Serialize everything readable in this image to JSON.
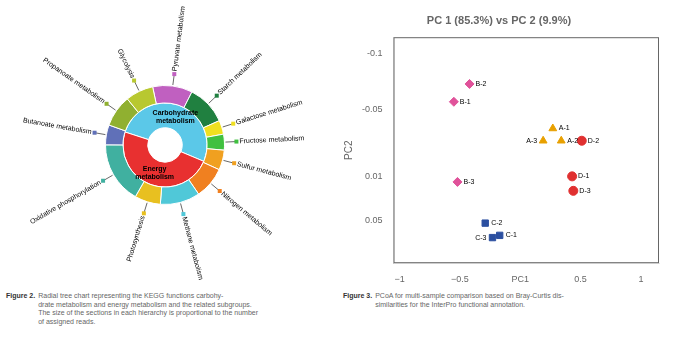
{
  "chart_data": [
    {
      "type": "sunburst",
      "series": [
        {
          "categories": [
            "Carbohydrate\nmetabolism",
            "Energy\nmetabolism"
          ],
          "values": [
            190,
            180
          ],
          "colors": [
            "#5bc8e8",
            "#e83030"
          ]
        },
        {
          "categories": [
            "Pyruvate metabolism",
            "Starch metabolism",
            "Galactose metabolism",
            "Fructose metabolism",
            "Sulfur metabolism",
            "Nitrogen metabolism",
            "Methane metabolism",
            "Photosynthesis",
            "Oxidative phosphorylation",
            "Butanoate metabolism",
            "Propanoate metabolism",
            "Glycolysis"
          ],
          "values": [
            40,
            40,
            14,
            16,
            20,
            32,
            40,
            26,
            62,
            20,
            32,
            28
          ],
          "colors": [
            "#c060c0",
            "#208040",
            "#f0e020",
            "#40c040",
            "#f0a020",
            "#f08020",
            "#50c8d8",
            "#e8c020",
            "#40b0a0",
            "#6070b8",
            "#90b030",
            "#b8c830"
          ]
        }
      ],
      "annotations": [
        "Figure 2.",
        "Radial tree chart representing the KEGG functions carbohy-\ndrate metabolism and energy metabolism and the related subgroups.\nThe size of the sections in each hierarchy is proportional to the number\nof assigned reads."
      ]
    },
    {
      "type": "scatter",
      "title": "PC 1 (85.3%) vs PC 2 (9.9%)",
      "ylabel": "PC2",
      "series": [
        {
          "color": "#e0529a",
          "marker": "diamond",
          "x": [
            -0.55,
            -0.42,
            -0.52
          ],
          "values": [
            -0.057,
            -0.073,
            0.015
          ],
          "point_labels": [
            "B-1",
            "B-2",
            "B-3"
          ]
        },
        {
          "color": "#e8a000",
          "marker": "triangle",
          "x": [
            0.27,
            0.34,
            0.19
          ],
          "values": [
            -0.033,
            -0.022,
            -0.022
          ],
          "point_labels": [
            "A-1",
            "A-2",
            "A-3"
          ]
        },
        {
          "color": "#e03030",
          "marker": "circle",
          "x": [
            0.43,
            0.51,
            0.44
          ],
          "values": [
            0.01,
            -0.022,
            0.023
          ],
          "point_labels": [
            "D-1",
            "D-2",
            "D-3"
          ]
        },
        {
          "color": "#2b4fa0",
          "marker": "square",
          "x": [
            -0.17,
            -0.29,
            -0.23
          ],
          "values": [
            0.063,
            0.052,
            0.065
          ],
          "point_labels": [
            "C-1",
            "C-2",
            "C-3"
          ]
        }
      ],
      "xlim": [
        -1.05,
        1.15
      ],
      "xticks": [
        {
          "value": -1,
          "label": "−1"
        },
        {
          "value": -0.5,
          "label": "−0.5"
        },
        {
          "value": 0,
          "label": "PC1"
        },
        0.5,
        1
      ],
      "ylim": [
        0.088,
        -0.115
      ],
      "yticks": [
        -0.1,
        -0.05,
        0.05,
        0.01
      ],
      "grid": false,
      "annotations": [
        "Figure 3.",
        "PCoA for multi-sample comparison based on Bray-Curtis dis-\nsimilarities for the InterPro functional annotation."
      ]
    }
  ]
}
